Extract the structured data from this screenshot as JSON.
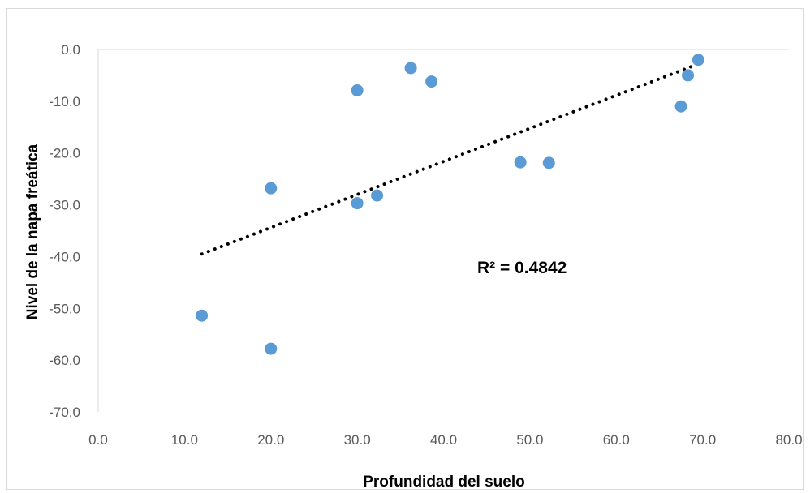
{
  "chart_data": {
    "type": "scatter",
    "xlabel": "Profundidad del suelo",
    "ylabel": "Nivel de la napa freática",
    "xlim": [
      0,
      80
    ],
    "ylim": [
      -70,
      0
    ],
    "x_ticks": [
      "0.0",
      "10.0",
      "20.0",
      "30.0",
      "40.0",
      "50.0",
      "60.0",
      "70.0",
      "80.0"
    ],
    "y_ticks": [
      "0.0",
      "-10.0",
      "-20.0",
      "-30.0",
      "-40.0",
      "-50.0",
      "-60.0",
      "-70.0"
    ],
    "grid": false,
    "marker_color": "#5b9bd5",
    "trendline": {
      "type": "linear",
      "style": "dotted",
      "color": "#000000",
      "x_range": [
        12,
        69.5
      ],
      "y_range": [
        -39.5,
        -2.8
      ]
    },
    "annotation": "R² = 0.4842",
    "points": [
      {
        "x": 12.0,
        "y": -51.4
      },
      {
        "x": 20.0,
        "y": -26.8
      },
      {
        "x": 20.0,
        "y": -57.8
      },
      {
        "x": 30.0,
        "y": -7.9
      },
      {
        "x": 30.0,
        "y": -29.7
      },
      {
        "x": 32.3,
        "y": -28.2
      },
      {
        "x": 36.2,
        "y": -3.6
      },
      {
        "x": 38.6,
        "y": -6.2
      },
      {
        "x": 48.9,
        "y": -21.8
      },
      {
        "x": 52.2,
        "y": -21.9
      },
      {
        "x": 67.5,
        "y": -11.0
      },
      {
        "x": 68.3,
        "y": -5.0
      },
      {
        "x": 69.5,
        "y": -2.0
      }
    ]
  }
}
